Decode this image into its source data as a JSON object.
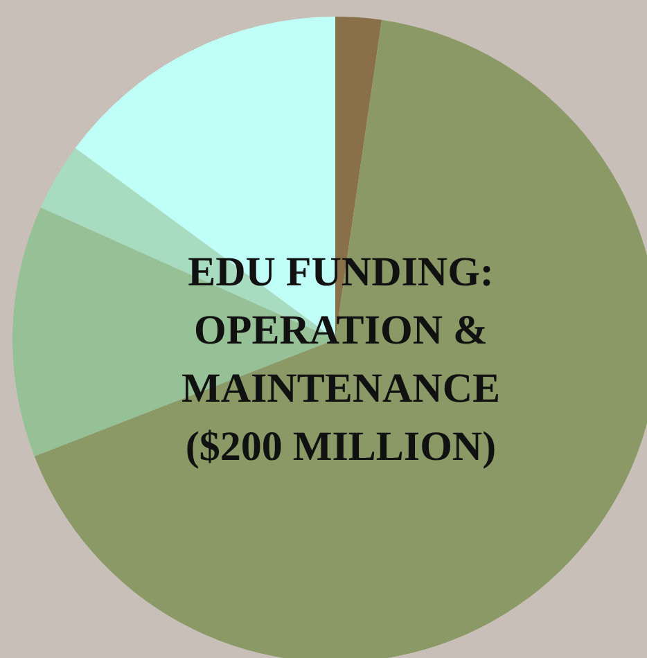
{
  "chart_data": {
    "type": "pie",
    "title": "EDU FUNDING: OPERATION & MAINTENANCE ($200 MILLION)",
    "categories": [
      null,
      null,
      null,
      null,
      null
    ],
    "values": [
      2.3,
      66.8,
      12.6,
      3.4,
      14.9
    ],
    "colors": [
      "#8a7048",
      "#8a9966",
      "#96c096",
      "#a8dcc0",
      "#c0fff8"
    ]
  }
}
